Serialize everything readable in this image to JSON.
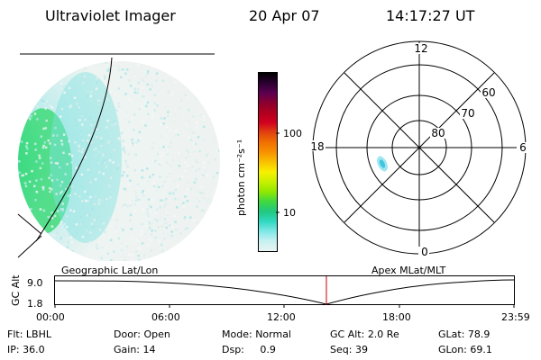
{
  "header": {
    "title": "Ultraviolet Imager",
    "date": "20 Apr 07",
    "time": "14:17:27 UT"
  },
  "colorbar": {
    "unit_label": "photon cm⁻²s⁻¹",
    "ticks": [
      "100",
      "10"
    ],
    "colors": [
      "#000000",
      "#2a0030",
      "#5a0050",
      "#8a0030",
      "#b00020",
      "#d00020",
      "#e04010",
      "#f07000",
      "#f89000",
      "#f8c000",
      "#f8f000",
      "#c8f000",
      "#90e800",
      "#40d840",
      "#20c880",
      "#30d8c0",
      "#80e8e8",
      "#c8f0f0",
      "#e8f4f4"
    ]
  },
  "polar_grid": {
    "mlt_labels": [
      "12",
      "6",
      "0",
      "18"
    ],
    "lat_labels": [
      "60",
      "70",
      "80"
    ]
  },
  "timeline": {
    "left_label": "Geographic Lat/Lon",
    "right_label": "Apex MLat/MLT",
    "y_axis_label": "GC Alt",
    "y_ticks": [
      "9.0",
      "1.8"
    ],
    "x_ticks": [
      "00:00",
      "06:00",
      "12:00",
      "18:00",
      "23:59"
    ],
    "marker_color": "#c00000"
  },
  "info": {
    "row1": [
      {
        "label": "Flt:",
        "value": "LBHL"
      },
      {
        "label": "Door:",
        "value": "Open"
      },
      {
        "label": "Mode:",
        "value": "Normal"
      },
      {
        "label": "GC Alt:",
        "value": "2.0 Re"
      },
      {
        "label": "GLat:",
        "value": "78.9"
      }
    ],
    "row2": [
      {
        "label": "IP:",
        "value": "36.0"
      },
      {
        "label": "Gain:",
        "value": "14"
      },
      {
        "label": "Dsp:",
        "value": "0.9"
      },
      {
        "label": "Seq:",
        "value": "39"
      },
      {
        "label": "GLon:",
        "value": "69.1"
      }
    ]
  }
}
